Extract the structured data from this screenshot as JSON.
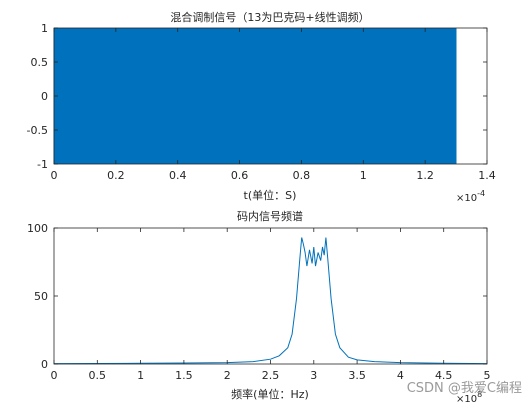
{
  "chart_data": [
    {
      "type": "line",
      "title": "混合调制信号（13为巴克码+线性调频）",
      "xlabel": "t(单位：S)",
      "ylabel": "",
      "x_exponent_label": "×10",
      "x_exponent_power": "-4",
      "x_scale": 0.0001,
      "xlim": [
        0,
        1.4
      ],
      "ylim": [
        -1,
        1
      ],
      "xticks": [
        "0",
        "0.2",
        "0.4",
        "0.6",
        "0.8",
        "1",
        "1.2",
        "1.4"
      ],
      "yticks": [
        "-1",
        "-0.5",
        "0",
        "0.5",
        "1"
      ],
      "grid": false,
      "series_color": "#0072bd",
      "signal_span_x": [
        0,
        1.3
      ],
      "signal_amplitude": 1
    },
    {
      "type": "line",
      "title": "码内信号频谱",
      "xlabel": "频率(单位：Hz)",
      "ylabel": "",
      "x_exponent_label": "×10",
      "x_exponent_power": "8",
      "x_scale": 100000000,
      "xlim": [
        0,
        5
      ],
      "ylim": [
        0,
        100
      ],
      "xticks": [
        "0",
        "0.5",
        "1",
        "1.5",
        "2",
        "2.5",
        "3",
        "3.5",
        "4",
        "4.5",
        "5"
      ],
      "yticks": [
        "0",
        "50",
        "100"
      ],
      "grid": false,
      "series_color": "#0072bd",
      "spectrum": {
        "x": [
          0,
          0.5,
          1.0,
          1.5,
          2.0,
          2.3,
          2.5,
          2.6,
          2.7,
          2.75,
          2.8,
          2.84,
          2.86,
          2.88,
          2.9,
          2.92,
          2.95,
          2.98,
          3.0,
          3.02,
          3.05,
          3.08,
          3.1,
          3.12,
          3.14,
          3.16,
          3.2,
          3.25,
          3.3,
          3.4,
          3.5,
          3.7,
          4.0,
          4.5,
          5.0
        ],
        "y": [
          0.3,
          0.4,
          0.5,
          0.7,
          1.0,
          1.8,
          3.5,
          6,
          12,
          22,
          48,
          78,
          93,
          88,
          82,
          72,
          84,
          74,
          86,
          72,
          82,
          76,
          86,
          80,
          93,
          78,
          48,
          22,
          12,
          5,
          3,
          1.8,
          1.0,
          0.5,
          0.3
        ]
      }
    }
  ],
  "watermark": "CSDN @我爱C编程"
}
